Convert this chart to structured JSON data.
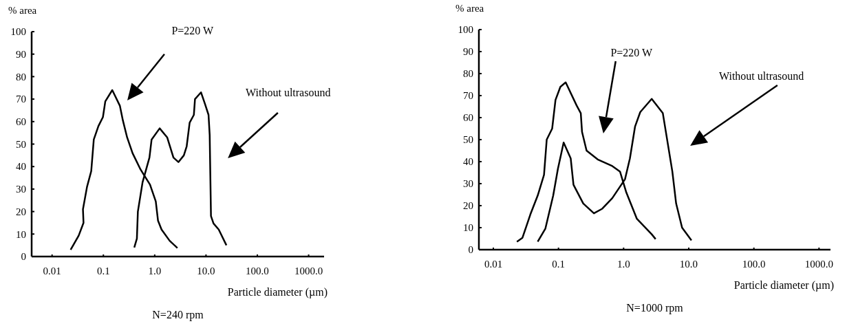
{
  "chart_data": [
    {
      "type": "line",
      "ylabel": "% area",
      "xlabel": "Particle diameter (µm)",
      "annotations": [
        "P=220 W",
        "Without ultrasound",
        "N=240 rpm"
      ],
      "log": "x",
      "xlim": [
        0.004,
        2000
      ],
      "ylim": [
        0,
        100
      ],
      "xticks": [
        {
          "value": 0.01,
          "label": "0.01"
        },
        {
          "value": 0.1,
          "label": "0.1"
        },
        {
          "value": 1,
          "label": "1.0"
        },
        {
          "value": 10,
          "label": "10.0"
        },
        {
          "value": 100,
          "label": "100.0"
        },
        {
          "value": 1000,
          "label": "1000.0"
        }
      ],
      "yticks": [
        0,
        10,
        20,
        30,
        40,
        50,
        60,
        70,
        80,
        90,
        100
      ],
      "marker": "none",
      "line_style": "solid",
      "series": [
        {
          "color": "#000000",
          "x": [
            0.023,
            0.033,
            0.041,
            0.04,
            0.048,
            0.058,
            0.065,
            0.08,
            0.098,
            0.109,
            0.149,
            0.21,
            0.24,
            0.29,
            0.37,
            0.53,
            0.81,
            1.05,
            1.16,
            1.36,
            1.96,
            2.77
          ],
          "values": [
            3,
            9.3,
            15,
            21,
            31,
            38,
            52,
            58,
            62,
            69,
            74,
            67,
            60.5,
            53,
            46,
            38.7,
            32,
            24.5,
            16,
            12,
            7,
            3.8
          ]
        },
        {
          "color": "#000000",
          "x": [
            0.4,
            0.45,
            0.47,
            0.58,
            0.79,
            0.87,
            1.25,
            1.75,
            2.32,
            2.9,
            3.7,
            4.2,
            4.8,
            5.8,
            6.1,
            8.0,
            9.5,
            11.2,
            11.8,
            12.5,
            14,
            17.7,
            25
          ],
          "values": [
            4,
            8,
            20,
            33,
            44,
            52,
            57,
            53,
            44,
            42,
            45,
            49,
            59.5,
            63,
            70,
            73,
            68,
            63,
            54,
            18,
            14.7,
            12,
            5
          ]
        }
      ]
    },
    {
      "type": "line",
      "ylabel": "% area",
      "xlabel": "Particle diameter (µm)",
      "annotations": [
        "P=220 W",
        "Without ultrasound",
        "N=1000 rpm"
      ],
      "log": "x",
      "xlim": [
        0.006,
        1500
      ],
      "ylim": [
        0,
        100
      ],
      "xticks": [
        {
          "value": 0.01,
          "label": "0.01"
        },
        {
          "value": 0.1,
          "label": "0.1"
        },
        {
          "value": 1,
          "label": "1.0"
        },
        {
          "value": 10,
          "label": "10.0"
        },
        {
          "value": 100,
          "label": "100.0"
        },
        {
          "value": 1000,
          "label": "1000.0"
        }
      ],
      "yticks": [
        0,
        10,
        20,
        30,
        40,
        50,
        60,
        70,
        80,
        90,
        100
      ],
      "marker": "none",
      "line_style": "solid",
      "series": [
        {
          "color": "#000000",
          "x": [
            0.023,
            0.028,
            0.037,
            0.048,
            0.06,
            0.066,
            0.08,
            0.09,
            0.107,
            0.129,
            0.19,
            0.22,
            0.23,
            0.27,
            0.4,
            0.67,
            0.88,
            1.1,
            1.6,
            2.7,
            3.1
          ],
          "values": [
            3.6,
            5.4,
            16,
            24.6,
            34,
            50,
            55,
            68,
            74,
            76,
            65.5,
            62,
            53.5,
            45,
            41,
            38,
            35.5,
            26,
            14,
            7,
            4.8
          ]
        },
        {
          "color": "#000000",
          "x": [
            0.048,
            0.063,
            0.083,
            0.098,
            0.12,
            0.154,
            0.17,
            0.24,
            0.35,
            0.47,
            0.67,
            1.05,
            1.25,
            1.5,
            1.8,
            2.7,
            4.0,
            5.6,
            6.4,
            7.9,
            11
          ],
          "values": [
            3.6,
            9.6,
            24.6,
            36.7,
            48.7,
            41.5,
            29.5,
            21,
            16.5,
            18.6,
            23.4,
            32,
            41.5,
            56,
            62.5,
            68.5,
            62,
            35.5,
            21,
            10,
            4.2
          ]
        }
      ]
    }
  ]
}
